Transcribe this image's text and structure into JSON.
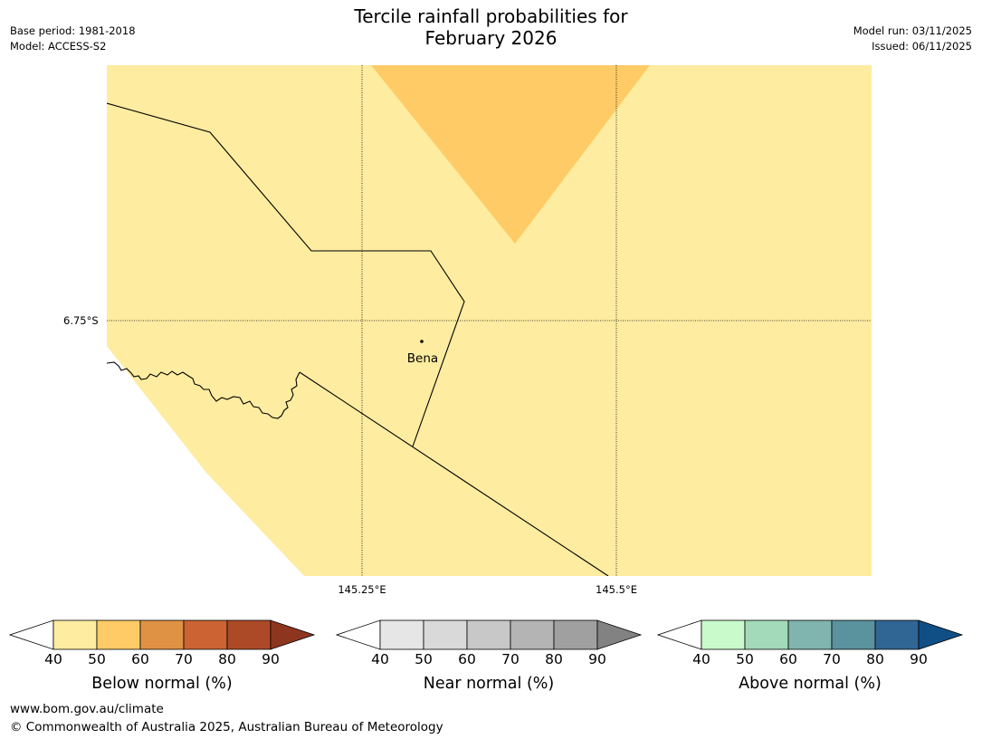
{
  "title_line1": "Tercile rainfall probabilities for",
  "title_line2": "February 2026",
  "meta": {
    "base_period": "Base period: 1981-2018",
    "model": "Model: ACCESS-S2",
    "model_run": "Model run: 03/11/2025",
    "issued": "Issued: 06/11/2025"
  },
  "map": {
    "lat_label": "6.75°S",
    "lon_labels": [
      "145.25°E",
      "145.5°E"
    ],
    "place": "Bena",
    "colors": {
      "below_40_50": "#feeca0",
      "below_50_60": "#fecb67",
      "border": "#000000",
      "gridline": "#000000"
    }
  },
  "colorbars": [
    {
      "label": "Below normal (%)",
      "ticks": [
        "40",
        "50",
        "60",
        "70",
        "80",
        "90"
      ],
      "colors": [
        "#ffffff",
        "#feeca0",
        "#fecb67",
        "#e09244",
        "#cb6332",
        "#ac4a27",
        "#8e3520"
      ]
    },
    {
      "label": "Near normal (%)",
      "ticks": [
        "40",
        "50",
        "60",
        "70",
        "80",
        "90"
      ],
      "colors": [
        "#ffffff",
        "#e6e6e6",
        "#d9d9d9",
        "#c8c8c8",
        "#b4b4b4",
        "#a0a0a0",
        "#828282"
      ]
    },
    {
      "label": "Above normal (%)",
      "ticks": [
        "40",
        "50",
        "60",
        "70",
        "80",
        "90"
      ],
      "colors": [
        "#ffffff",
        "#c8facc",
        "#a3dab9",
        "#80b4ae",
        "#5a929e",
        "#2f6694",
        "#104f85"
      ]
    }
  ],
  "footer": {
    "url": "www.bom.gov.au/climate",
    "copyright": "© Commonwealth of Australia 2025, Australian Bureau of Meteorology"
  }
}
